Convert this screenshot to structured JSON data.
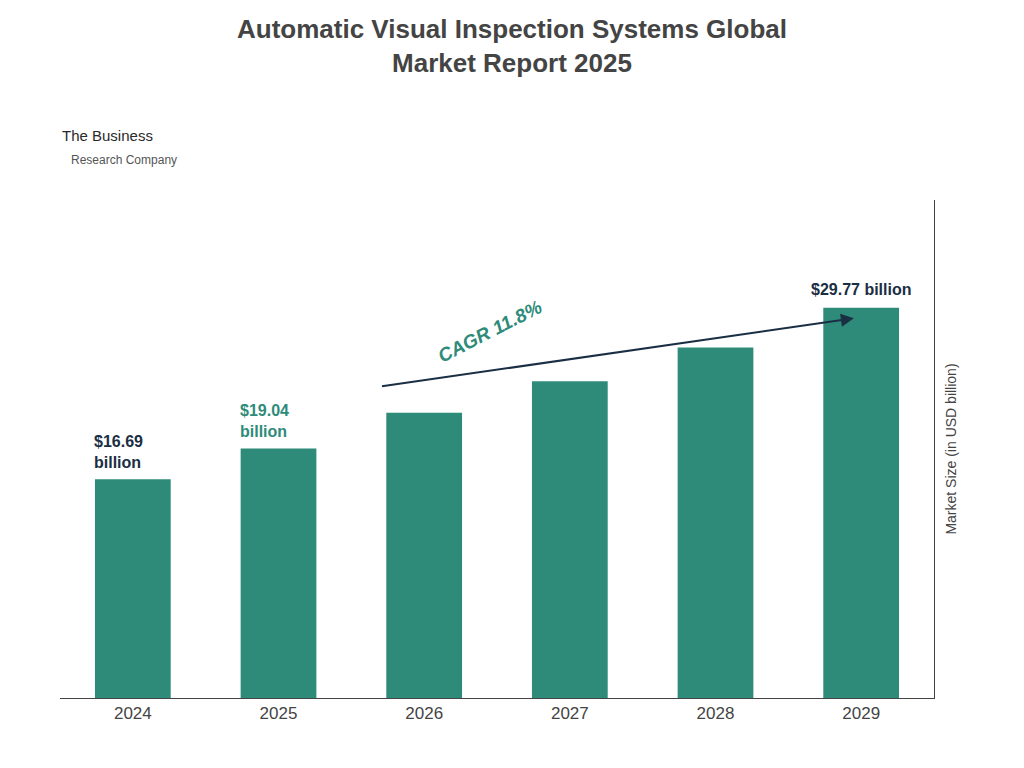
{
  "chart_data": {
    "type": "bar",
    "title": "Automatic Visual Inspection Systems Global\nMarket Report 2025",
    "categories": [
      "2024",
      "2025",
      "2026",
      "2027",
      "2028",
      "2029"
    ],
    "values": [
      16.69,
      19.04,
      21.77,
      24.17,
      26.75,
      29.77
    ],
    "color": "#2e8b7a",
    "ylabel": "Market Size (in USD billion)",
    "ylim": [
      0,
      38
    ],
    "tick_labels": "x",
    "grid": false,
    "annotations": [
      {
        "text": "$16.69\nbillion",
        "category": "2024",
        "color": "#1a2e44",
        "align": "left"
      },
      {
        "text": "$19.04\nbillion",
        "category": "2025",
        "color": "#2e8b7a",
        "align": "left"
      },
      {
        "text": "$29.77 billion",
        "category": "2029",
        "color": "#1a2e44",
        "align": "center"
      },
      {
        "text": "CAGR 11.8%",
        "category": "2027",
        "color": "#2e8b7a",
        "align": "cagr"
      },
      {
        "text": "The Business",
        "align": "logo1"
      },
      {
        "text": "Research Company",
        "align": "logo2"
      }
    ],
    "arrow": {
      "from": "2026",
      "to": "2029",
      "color": "#1a2e44"
    }
  }
}
